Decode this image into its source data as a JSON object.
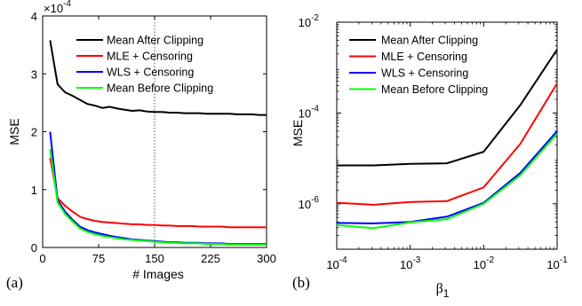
{
  "chart_data": [
    {
      "panel_label": "(a)",
      "type": "line",
      "xlabel": "# Images",
      "ylabel": "MSE",
      "y_exponent": "×10",
      "y_exponent_power": "-4",
      "xlim": [
        0,
        300
      ],
      "ylim": [
        0,
        4
      ],
      "x_scale": "linear",
      "y_scale": "linear",
      "x_ticks": [
        0,
        75,
        150,
        225,
        300
      ],
      "x_tick_labels": [
        "0",
        "75",
        "150",
        "225",
        "300"
      ],
      "y_ticks": [
        0,
        1,
        2,
        3,
        4
      ],
      "y_tick_labels": [
        "0",
        "1",
        "2",
        "3",
        "4"
      ],
      "vline_x": 150,
      "legend_position": "top-right",
      "series": [
        {
          "name": "Mean After Clipping",
          "color": "#000000",
          "x": [
            10,
            20,
            30,
            40,
            50,
            60,
            70,
            80,
            90,
            100,
            110,
            120,
            130,
            140,
            150,
            160,
            170,
            180,
            190,
            200,
            210,
            220,
            230,
            240,
            250,
            260,
            270,
            280,
            290,
            300
          ],
          "y": [
            3.58,
            2.82,
            2.68,
            2.62,
            2.55,
            2.48,
            2.45,
            2.41,
            2.43,
            2.4,
            2.38,
            2.36,
            2.37,
            2.35,
            2.34,
            2.34,
            2.33,
            2.33,
            2.32,
            2.32,
            2.32,
            2.31,
            2.31,
            2.31,
            2.31,
            2.3,
            2.3,
            2.3,
            2.29,
            2.29
          ]
        },
        {
          "name": "MLE + Censoring",
          "color": "#ff0000",
          "x": [
            10,
            20,
            30,
            40,
            50,
            60,
            70,
            80,
            90,
            100,
            110,
            120,
            130,
            140,
            150,
            160,
            170,
            180,
            190,
            200,
            210,
            220,
            230,
            240,
            250,
            260,
            270,
            280,
            290,
            300
          ],
          "y": [
            1.55,
            0.85,
            0.72,
            0.62,
            0.53,
            0.49,
            0.46,
            0.44,
            0.43,
            0.42,
            0.41,
            0.4,
            0.4,
            0.39,
            0.39,
            0.38,
            0.38,
            0.37,
            0.37,
            0.37,
            0.36,
            0.36,
            0.36,
            0.36,
            0.35,
            0.35,
            0.35,
            0.35,
            0.35,
            0.35
          ]
        },
        {
          "name": "WLS + Censoring",
          "color": "#0000ff",
          "x": [
            10,
            20,
            30,
            40,
            50,
            60,
            70,
            80,
            90,
            100,
            110,
            120,
            130,
            140,
            150,
            160,
            170,
            180,
            190,
            200,
            210,
            220,
            230,
            240,
            250,
            260,
            270,
            280,
            290,
            300
          ],
          "y": [
            2.0,
            0.82,
            0.62,
            0.48,
            0.36,
            0.3,
            0.26,
            0.23,
            0.2,
            0.18,
            0.16,
            0.14,
            0.13,
            0.12,
            0.11,
            0.1,
            0.09,
            0.09,
            0.08,
            0.08,
            0.08,
            0.07,
            0.07,
            0.07,
            0.06,
            0.06,
            0.06,
            0.06,
            0.06,
            0.06
          ]
        },
        {
          "name": "Mean Before Clipping",
          "color": "#00ff00",
          "x": [
            10,
            20,
            30,
            40,
            50,
            60,
            70,
            80,
            90,
            100,
            110,
            120,
            130,
            140,
            150,
            160,
            170,
            180,
            190,
            200,
            210,
            220,
            230,
            240,
            250,
            260,
            270,
            280,
            290,
            300
          ],
          "y": [
            1.7,
            0.78,
            0.58,
            0.45,
            0.33,
            0.27,
            0.23,
            0.2,
            0.18,
            0.16,
            0.14,
            0.13,
            0.12,
            0.11,
            0.1,
            0.09,
            0.08,
            0.08,
            0.07,
            0.07,
            0.07,
            0.06,
            0.06,
            0.06,
            0.05,
            0.05,
            0.05,
            0.05,
            0.05,
            0.05
          ]
        }
      ]
    },
    {
      "panel_label": "(b)",
      "type": "line",
      "xlabel": "β",
      "xlabel_sub": "1",
      "ylabel": "MSE",
      "x_scale": "log",
      "y_scale": "log",
      "xlim": [
        0.0001,
        0.1
      ],
      "ylim": [
        1e-07,
        0.01
      ],
      "x_ticks": [
        0.0001,
        0.001,
        0.01,
        0.1
      ],
      "x_tick_base": [
        "10",
        "10",
        "10",
        "10"
      ],
      "x_tick_exp": [
        "-4",
        "-3",
        "-2",
        "-1"
      ],
      "y_ticks": [
        1e-06,
        0.0001,
        0.01
      ],
      "y_tick_base": [
        "10",
        "10",
        "10"
      ],
      "y_tick_exp": [
        "-6",
        "-4",
        "-2"
      ],
      "legend_position": "top-left",
      "series": [
        {
          "name": "Mean After Clipping",
          "color": "#000000",
          "x": [
            0.0001,
            0.000316,
            0.001,
            0.00316,
            0.01,
            0.0316,
            0.1
          ],
          "y": [
            7e-06,
            7e-06,
            7.6e-06,
            7.8e-06,
            1.4e-05,
            0.00015,
            0.0025
          ]
        },
        {
          "name": "MLE + Censoring",
          "color": "#ff0000",
          "x": [
            0.0001,
            0.000316,
            0.001,
            0.00316,
            0.01,
            0.0316,
            0.1
          ],
          "y": [
            1.05e-06,
            9.5e-07,
            1.1e-06,
            1.15e-06,
            2.3e-06,
            2.1e-05,
            0.00045
          ]
        },
        {
          "name": "WLS + Censoring",
          "color": "#0000ff",
          "x": [
            0.0001,
            0.000316,
            0.001,
            0.00316,
            0.01,
            0.0316,
            0.1
          ],
          "y": [
            3.8e-07,
            3.7e-07,
            4e-07,
            5.2e-07,
            1.05e-06,
            4.8e-06,
            4e-05
          ]
        },
        {
          "name": "Mean Before Clipping",
          "color": "#00ff00",
          "x": [
            0.0001,
            0.000316,
            0.001,
            0.00316,
            0.01,
            0.0316,
            0.1
          ],
          "y": [
            3.4e-07,
            2.9e-07,
            3.9e-07,
            4.6e-07,
            1e-06,
            4.3e-06,
            3.5e-05
          ]
        }
      ]
    }
  ]
}
